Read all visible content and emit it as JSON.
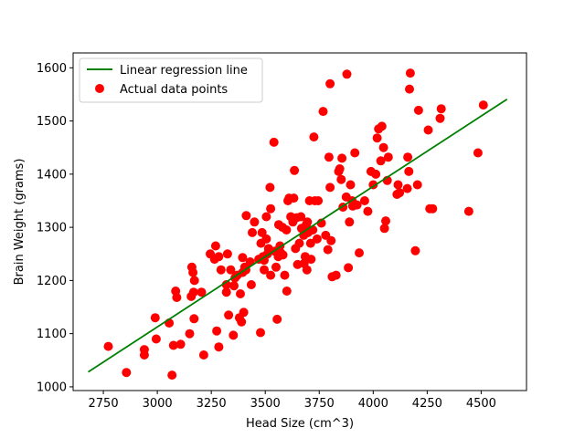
{
  "colors": {
    "regression_line": "#008000",
    "points": "#ff0000",
    "axis": "#000000",
    "background": "#ffffff"
  },
  "chart_data": {
    "type": "scatter",
    "xlabel": "Head Size (cm^3)",
    "ylabel": "Brain Weight (grams)",
    "xlim": [
      2610,
      4710
    ],
    "ylim": [
      993,
      1628
    ],
    "xticks": [
      2750,
      3000,
      3250,
      3500,
      3750,
      4000,
      4250,
      4500
    ],
    "yticks": [
      1000,
      1100,
      1200,
      1300,
      1400,
      1500,
      1600
    ],
    "grid": false,
    "legend_position": "top-left",
    "legend": [
      {
        "label": "Linear regression line",
        "kind": "line"
      },
      {
        "label": "Actual data points",
        "kind": "marker"
      }
    ],
    "regression_line": {
      "name": "Linear regression line",
      "x": [
        2680,
        4620
      ],
      "y": [
        1028,
        1541
      ]
    },
    "series": [
      {
        "name": "Actual data points",
        "points": [
          [
            2773,
            1076
          ],
          [
            2857,
            1027
          ],
          [
            2940,
            1060
          ],
          [
            2940,
            1070
          ],
          [
            2990,
            1130
          ],
          [
            2995,
            1090
          ],
          [
            3055,
            1120
          ],
          [
            3068,
            1022
          ],
          [
            3075,
            1078
          ],
          [
            3085,
            1180
          ],
          [
            3090,
            1168
          ],
          [
            3108,
            1080
          ],
          [
            3150,
            1100
          ],
          [
            3157,
            1170
          ],
          [
            3160,
            1225
          ],
          [
            3165,
            1215
          ],
          [
            3168,
            1178
          ],
          [
            3170,
            1128
          ],
          [
            3172,
            1200
          ],
          [
            3205,
            1178
          ],
          [
            3215,
            1060
          ],
          [
            3245,
            1250
          ],
          [
            3265,
            1240
          ],
          [
            3270,
            1265
          ],
          [
            3275,
            1105
          ],
          [
            3285,
            1245
          ],
          [
            3285,
            1075
          ],
          [
            3295,
            1220
          ],
          [
            3320,
            1192
          ],
          [
            3320,
            1178
          ],
          [
            3325,
            1250
          ],
          [
            3330,
            1135
          ],
          [
            3340,
            1220
          ],
          [
            3352,
            1097
          ],
          [
            3355,
            1190
          ],
          [
            3360,
            1205
          ],
          [
            3370,
            1210
          ],
          [
            3380,
            1130
          ],
          [
            3385,
            1175
          ],
          [
            3390,
            1122
          ],
          [
            3395,
            1243
          ],
          [
            3395,
            1215
          ],
          [
            3400,
            1140
          ],
          [
            3405,
            1225
          ],
          [
            3410,
            1220
          ],
          [
            3412,
            1322
          ],
          [
            3430,
            1235
          ],
          [
            3435,
            1192
          ],
          [
            3440,
            1290
          ],
          [
            3450,
            1310
          ],
          [
            3470,
            1240
          ],
          [
            3478,
            1102
          ],
          [
            3480,
            1270
          ],
          [
            3485,
            1290
          ],
          [
            3490,
            1245
          ],
          [
            3495,
            1238
          ],
          [
            3495,
            1220
          ],
          [
            3505,
            1320
          ],
          [
            3505,
            1278
          ],
          [
            3510,
            1250
          ],
          [
            3515,
            1260
          ],
          [
            3522,
            1375
          ],
          [
            3525,
            1335
          ],
          [
            3525,
            1210
          ],
          [
            3540,
            1460
          ],
          [
            3545,
            1255
          ],
          [
            3550,
            1225
          ],
          [
            3555,
            1127
          ],
          [
            3560,
            1245
          ],
          [
            3562,
            1305
          ],
          [
            3568,
            1265
          ],
          [
            3572,
            1252
          ],
          [
            3580,
            1300
          ],
          [
            3582,
            1248
          ],
          [
            3590,
            1210
          ],
          [
            3598,
            1295
          ],
          [
            3600,
            1180
          ],
          [
            3605,
            1350
          ],
          [
            3610,
            1355
          ],
          [
            3618,
            1320
          ],
          [
            3628,
            1310
          ],
          [
            3632,
            1355
          ],
          [
            3635,
            1407
          ],
          [
            3640,
            1260
          ],
          [
            3645,
            1318
          ],
          [
            3650,
            1230
          ],
          [
            3658,
            1270
          ],
          [
            3665,
            1320
          ],
          [
            3668,
            1298
          ],
          [
            3678,
            1285
          ],
          [
            3680,
            1232
          ],
          [
            3685,
            1245
          ],
          [
            3690,
            1305
          ],
          [
            3693,
            1220
          ],
          [
            3695,
            1310
          ],
          [
            3698,
            1290
          ],
          [
            3705,
            1350
          ],
          [
            3710,
            1270
          ],
          [
            3712,
            1240
          ],
          [
            3720,
            1295
          ],
          [
            3725,
            1470
          ],
          [
            3730,
            1350
          ],
          [
            3740,
            1278
          ],
          [
            3745,
            1350
          ],
          [
            3760,
            1308
          ],
          [
            3768,
            1518
          ],
          [
            3780,
            1285
          ],
          [
            3790,
            1258
          ],
          [
            3795,
            1432
          ],
          [
            3800,
            1375
          ],
          [
            3800,
            1570
          ],
          [
            3805,
            1275
          ],
          [
            3810,
            1207
          ],
          [
            3828,
            1210
          ],
          [
            3840,
            1405
          ],
          [
            3845,
            1410
          ],
          [
            3852,
            1390
          ],
          [
            3855,
            1430
          ],
          [
            3860,
            1338
          ],
          [
            3875,
            1357
          ],
          [
            3878,
            1588
          ],
          [
            3885,
            1224
          ],
          [
            3890,
            1310
          ],
          [
            3895,
            1380
          ],
          [
            3902,
            1350
          ],
          [
            3905,
            1340
          ],
          [
            3915,
            1440
          ],
          [
            3925,
            1342
          ],
          [
            3935,
            1252
          ],
          [
            3960,
            1350
          ],
          [
            3975,
            1330
          ],
          [
            3990,
            1405
          ],
          [
            4000,
            1380
          ],
          [
            4012,
            1400
          ],
          [
            4018,
            1468
          ],
          [
            4025,
            1485
          ],
          [
            4035,
            1425
          ],
          [
            4040,
            1490
          ],
          [
            4048,
            1450
          ],
          [
            4052,
            1298
          ],
          [
            4058,
            1312
          ],
          [
            4065,
            1388
          ],
          [
            4070,
            1432
          ],
          [
            4110,
            1362
          ],
          [
            4115,
            1380
          ],
          [
            4122,
            1365
          ],
          [
            4158,
            1373
          ],
          [
            4160,
            1432
          ],
          [
            4165,
            1405
          ],
          [
            4168,
            1560
          ],
          [
            4172,
            1590
          ],
          [
            4195,
            1256
          ],
          [
            4205,
            1380
          ],
          [
            4210,
            1520
          ],
          [
            4255,
            1483
          ],
          [
            4262,
            1335
          ],
          [
            4275,
            1335
          ],
          [
            4310,
            1505
          ],
          [
            4315,
            1523
          ],
          [
            4443,
            1330
          ],
          [
            4485,
            1440
          ],
          [
            4510,
            1530
          ]
        ]
      }
    ]
  }
}
